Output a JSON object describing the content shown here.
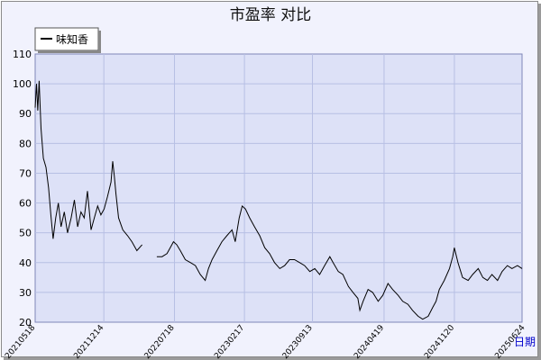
{
  "chart_data": {
    "type": "line",
    "title": "市盈率  对比",
    "xlabel": "日期",
    "ylabel": "",
    "ylim": [
      20,
      110
    ],
    "yticks": [
      20,
      30,
      40,
      50,
      60,
      70,
      80,
      90,
      100,
      110
    ],
    "xlim": [
      "2021-05-18",
      "2025-06-15"
    ],
    "xticks": [
      "20210518",
      "20211214",
      "20220718",
      "20230217",
      "20230913",
      "20240419",
      "20241120",
      "20250624"
    ],
    "legend_position": "top-left",
    "grid": true,
    "colors": {
      "plot_bg": "#dde1f7",
      "grid": "#b7bfe4",
      "line": "#000000",
      "xlabel": "#0000cc"
    },
    "series": [
      {
        "name": "味知香",
        "gaps": [
          [
            "2022-04-15",
            "2022-05-25"
          ]
        ],
        "points": [
          [
            "2021-05-18",
            92
          ],
          [
            "2021-05-22",
            100
          ],
          [
            "2021-05-26",
            91
          ],
          [
            "2021-05-30",
            101
          ],
          [
            "2021-06-05",
            85
          ],
          [
            "2021-06-12",
            75
          ],
          [
            "2021-06-20",
            72
          ],
          [
            "2021-06-28",
            65
          ],
          [
            "2021-07-05",
            56
          ],
          [
            "2021-07-12",
            48
          ],
          [
            "2021-07-20",
            55
          ],
          [
            "2021-07-28",
            60
          ],
          [
            "2021-08-05",
            52
          ],
          [
            "2021-08-15",
            57
          ],
          [
            "2021-08-25",
            50
          ],
          [
            "2021-09-05",
            55
          ],
          [
            "2021-09-15",
            61
          ],
          [
            "2021-09-25",
            52
          ],
          [
            "2021-10-05",
            57
          ],
          [
            "2021-10-15",
            55
          ],
          [
            "2021-10-25",
            64
          ],
          [
            "2021-11-05",
            51
          ],
          [
            "2021-11-15",
            55
          ],
          [
            "2021-11-25",
            59
          ],
          [
            "2021-12-05",
            56
          ],
          [
            "2021-12-15",
            58
          ],
          [
            "2021-12-25",
            62
          ],
          [
            "2022-01-05",
            67
          ],
          [
            "2022-01-10",
            74
          ],
          [
            "2022-01-15",
            69
          ],
          [
            "2022-01-20",
            63
          ],
          [
            "2022-01-28",
            55
          ],
          [
            "2022-02-10",
            51
          ],
          [
            "2022-02-25",
            49
          ],
          [
            "2022-03-10",
            47
          ],
          [
            "2022-03-25",
            44
          ],
          [
            "2022-04-10",
            46
          ],
          [
            "2022-05-25",
            42
          ],
          [
            "2022-06-10",
            42
          ],
          [
            "2022-06-25",
            43
          ],
          [
            "2022-07-05",
            45
          ],
          [
            "2022-07-15",
            47
          ],
          [
            "2022-07-25",
            46
          ],
          [
            "2022-08-05",
            44
          ],
          [
            "2022-08-20",
            41
          ],
          [
            "2022-09-05",
            40
          ],
          [
            "2022-09-20",
            39
          ],
          [
            "2022-10-05",
            36
          ],
          [
            "2022-10-20",
            34
          ],
          [
            "2022-10-30",
            38
          ],
          [
            "2022-11-10",
            41
          ],
          [
            "2022-11-25",
            44
          ],
          [
            "2022-12-10",
            47
          ],
          [
            "2022-12-25",
            49
          ],
          [
            "2023-01-10",
            51
          ],
          [
            "2023-01-20",
            47
          ],
          [
            "2023-02-01",
            55
          ],
          [
            "2023-02-10",
            59
          ],
          [
            "2023-02-20",
            58
          ],
          [
            "2023-03-05",
            55
          ],
          [
            "2023-03-20",
            52
          ],
          [
            "2023-04-05",
            49
          ],
          [
            "2023-04-20",
            45
          ],
          [
            "2023-05-05",
            43
          ],
          [
            "2023-05-20",
            40
          ],
          [
            "2023-06-05",
            38
          ],
          [
            "2023-06-20",
            39
          ],
          [
            "2023-07-05",
            41
          ],
          [
            "2023-07-20",
            41
          ],
          [
            "2023-08-05",
            40
          ],
          [
            "2023-08-20",
            39
          ],
          [
            "2023-09-05",
            37
          ],
          [
            "2023-09-20",
            38
          ],
          [
            "2023-10-05",
            36
          ],
          [
            "2023-10-20",
            39
          ],
          [
            "2023-11-05",
            42
          ],
          [
            "2023-11-15",
            40
          ],
          [
            "2023-12-01",
            37
          ],
          [
            "2023-12-15",
            36
          ],
          [
            "2024-01-01",
            32
          ],
          [
            "2024-01-15",
            30
          ],
          [
            "2024-01-30",
            28
          ],
          [
            "2024-02-05",
            24
          ],
          [
            "2024-02-15",
            27
          ],
          [
            "2024-03-01",
            31
          ],
          [
            "2024-03-15",
            30
          ],
          [
            "2024-04-01",
            27
          ],
          [
            "2024-04-15",
            29
          ],
          [
            "2024-05-01",
            33
          ],
          [
            "2024-05-15",
            31
          ],
          [
            "2024-06-01",
            29
          ],
          [
            "2024-06-15",
            27
          ],
          [
            "2024-07-01",
            26
          ],
          [
            "2024-07-15",
            24
          ],
          [
            "2024-08-01",
            22
          ],
          [
            "2024-08-15",
            21
          ],
          [
            "2024-09-01",
            22
          ],
          [
            "2024-09-15",
            25
          ],
          [
            "2024-09-25",
            27
          ],
          [
            "2024-10-05",
            31
          ],
          [
            "2024-10-20",
            34
          ],
          [
            "2024-11-05",
            38
          ],
          [
            "2024-11-15",
            42
          ],
          [
            "2024-11-20",
            45
          ],
          [
            "2024-12-01",
            40
          ],
          [
            "2024-12-15",
            35
          ],
          [
            "2025-01-01",
            34
          ],
          [
            "2025-01-15",
            36
          ],
          [
            "2025-02-01",
            38
          ],
          [
            "2025-02-15",
            35
          ],
          [
            "2025-03-01",
            34
          ],
          [
            "2025-03-15",
            36
          ],
          [
            "2025-04-01",
            34
          ],
          [
            "2025-04-15",
            37
          ],
          [
            "2025-05-01",
            39
          ],
          [
            "2025-05-15",
            38
          ],
          [
            "2025-06-01",
            39
          ],
          [
            "2025-06-15",
            38
          ]
        ]
      }
    ]
  }
}
